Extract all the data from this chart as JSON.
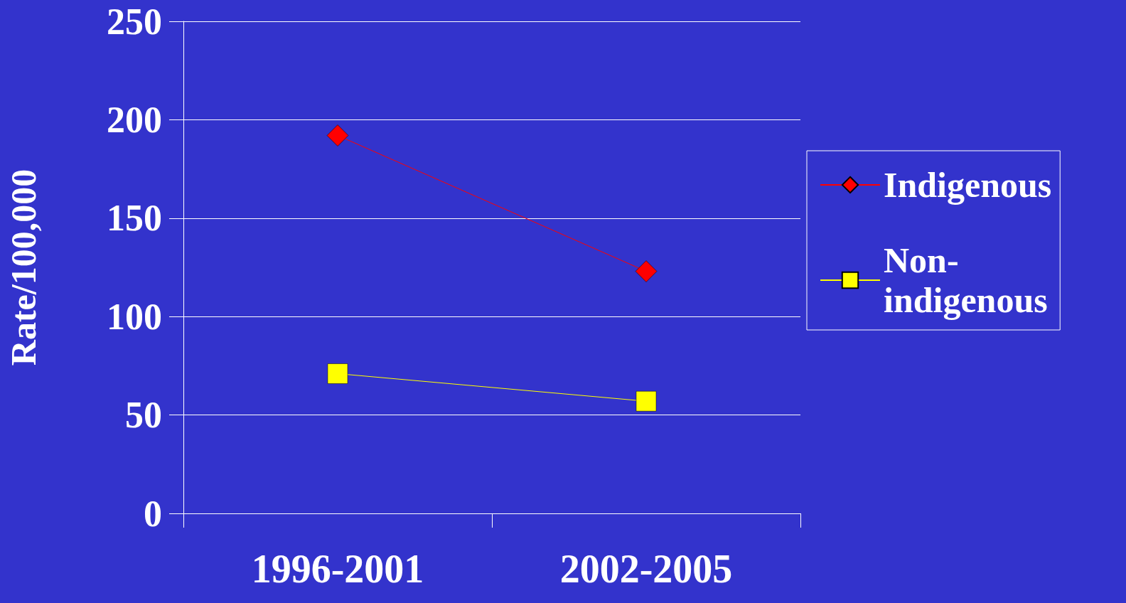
{
  "chart_data": {
    "type": "line",
    "ylabel": "Rate/100,000",
    "categories": [
      "1996-2001",
      "2002-2005"
    ],
    "series": [
      {
        "name": "Indigenous",
        "color": "#ff0000",
        "marker": "diamond",
        "values": [
          192,
          123
        ]
      },
      {
        "name": "Non-indigenous",
        "color": "#ffff00",
        "marker": "square",
        "values": [
          71,
          57
        ]
      }
    ],
    "ylim": [
      0,
      250
    ],
    "yticks": [
      0,
      50,
      100,
      150,
      200,
      250
    ],
    "grid": "y",
    "legend": "right"
  }
}
